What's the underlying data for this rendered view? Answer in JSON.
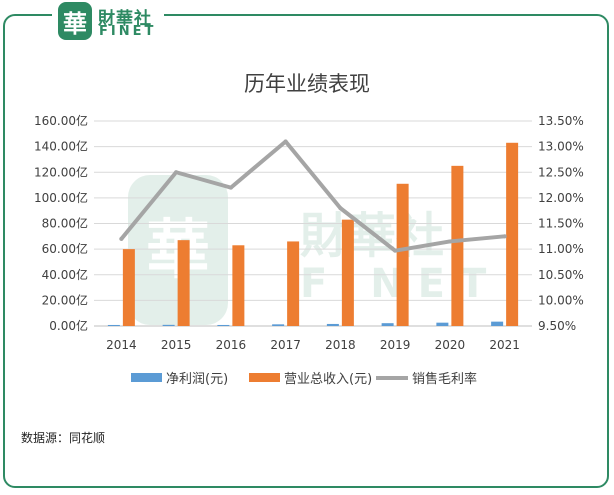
{
  "brand": {
    "badge_char": "華",
    "name_cn": "財華社",
    "name_en": "FINET",
    "color": "#2e8a63"
  },
  "source_text": "数据源：同花顺",
  "watermark": {
    "badge_char": "華",
    "name_cn": "財華社",
    "name_en": "FINET"
  },
  "chart_data": {
    "type": "bar",
    "title": "历年业绩表现",
    "categories": [
      "2014",
      "2015",
      "2016",
      "2017",
      "2018",
      "2019",
      "2020",
      "2021"
    ],
    "series": [
      {
        "name": "净利润(元)",
        "type": "bar",
        "axis": "left",
        "color": "#5b9bd5",
        "values": [
          0.8,
          0.9,
          0.8,
          1.3,
          1.6,
          2.2,
          2.6,
          3.4
        ]
      },
      {
        "name": "营业总收入(元)",
        "type": "bar",
        "axis": "left",
        "color": "#ed7d31",
        "values": [
          60,
          67,
          63,
          66,
          83,
          111,
          125,
          143
        ]
      },
      {
        "name": "销售毛利率",
        "type": "line",
        "axis": "right",
        "color": "#a5a5a5",
        "values": [
          11.2,
          12.5,
          12.2,
          13.1,
          11.8,
          10.97,
          11.15,
          11.25
        ]
      }
    ],
    "y_left": {
      "ylim": [
        0,
        160
      ],
      "ticks": [
        0,
        20,
        40,
        60,
        80,
        100,
        120,
        140,
        160
      ],
      "tick_labels": [
        "0.00亿",
        "20.00亿",
        "40.00亿",
        "60.00亿",
        "80.00亿",
        "100.00亿",
        "120.00亿",
        "140.00亿",
        "160.00亿"
      ]
    },
    "y_right": {
      "ylim": [
        9.5,
        13.5
      ],
      "ticks": [
        9.5,
        10,
        10.5,
        11,
        11.5,
        12,
        12.5,
        13,
        13.5
      ],
      "tick_labels": [
        "9.50%",
        "10.00%",
        "10.50%",
        "11.00%",
        "11.50%",
        "12.00%",
        "12.50%",
        "13.00%",
        "13.50%"
      ]
    },
    "grid": true,
    "legend_position": "bottom"
  }
}
